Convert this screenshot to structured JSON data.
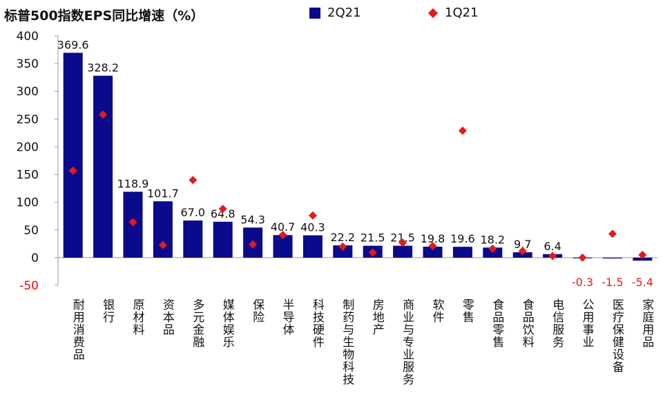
{
  "chart_data": {
    "type": "bar",
    "title": "标普500指数EPS同比增速（%）",
    "categories": [
      "耐用消费品",
      "银行",
      "原材料",
      "资本品",
      "多元金融",
      "媒体娱乐",
      "保险",
      "半导体",
      "科技硬件",
      "制药与生物科技",
      "房地产",
      "商业与专业服务",
      "软件",
      "零售",
      "食品零售",
      "食品饮料",
      "电信服务",
      "公用事业",
      "医疗保健设备",
      "家庭用品"
    ],
    "series": [
      {
        "name": "2Q21",
        "type": "bar",
        "color": "#0a0a8c",
        "values": [
          369.6,
          328.2,
          118.9,
          101.7,
          67.0,
          64.8,
          54.3,
          40.7,
          40.3,
          22.2,
          21.5,
          21.5,
          19.8,
          19.6,
          18.2,
          9.7,
          6.4,
          -0.3,
          -1.5,
          -5.4
        ],
        "labels": [
          "369.6",
          "328.2",
          "118.9",
          "101.7",
          "67.0",
          "64.8",
          "54.3",
          "40.7",
          "40.3",
          "22.2",
          "21.5",
          "21.5",
          "19.8",
          "19.6",
          "18.2",
          "9.7",
          "6.4",
          "-0.3",
          "-1.5",
          "-5.4"
        ]
      },
      {
        "name": "1Q21",
        "type": "scatter",
        "color": "#e41a1c",
        "values": [
          157,
          258,
          64,
          23,
          140,
          88,
          24,
          41,
          76,
          20,
          9,
          27,
          21,
          229,
          16,
          12,
          3,
          0,
          43,
          5
        ]
      }
    ],
    "ylim": [
      -50,
      400
    ],
    "yticks": [
      -50,
      0,
      50,
      100,
      150,
      200,
      250,
      300,
      350,
      400
    ],
    "ytick_labels": [
      "-50",
      "0",
      "50",
      "100",
      "150",
      "200",
      "250",
      "300",
      "350",
      "400"
    ],
    "negative_tick_color": "#ff0000",
    "negative_label_color": "#e41a1c",
    "legend_position": "top"
  }
}
